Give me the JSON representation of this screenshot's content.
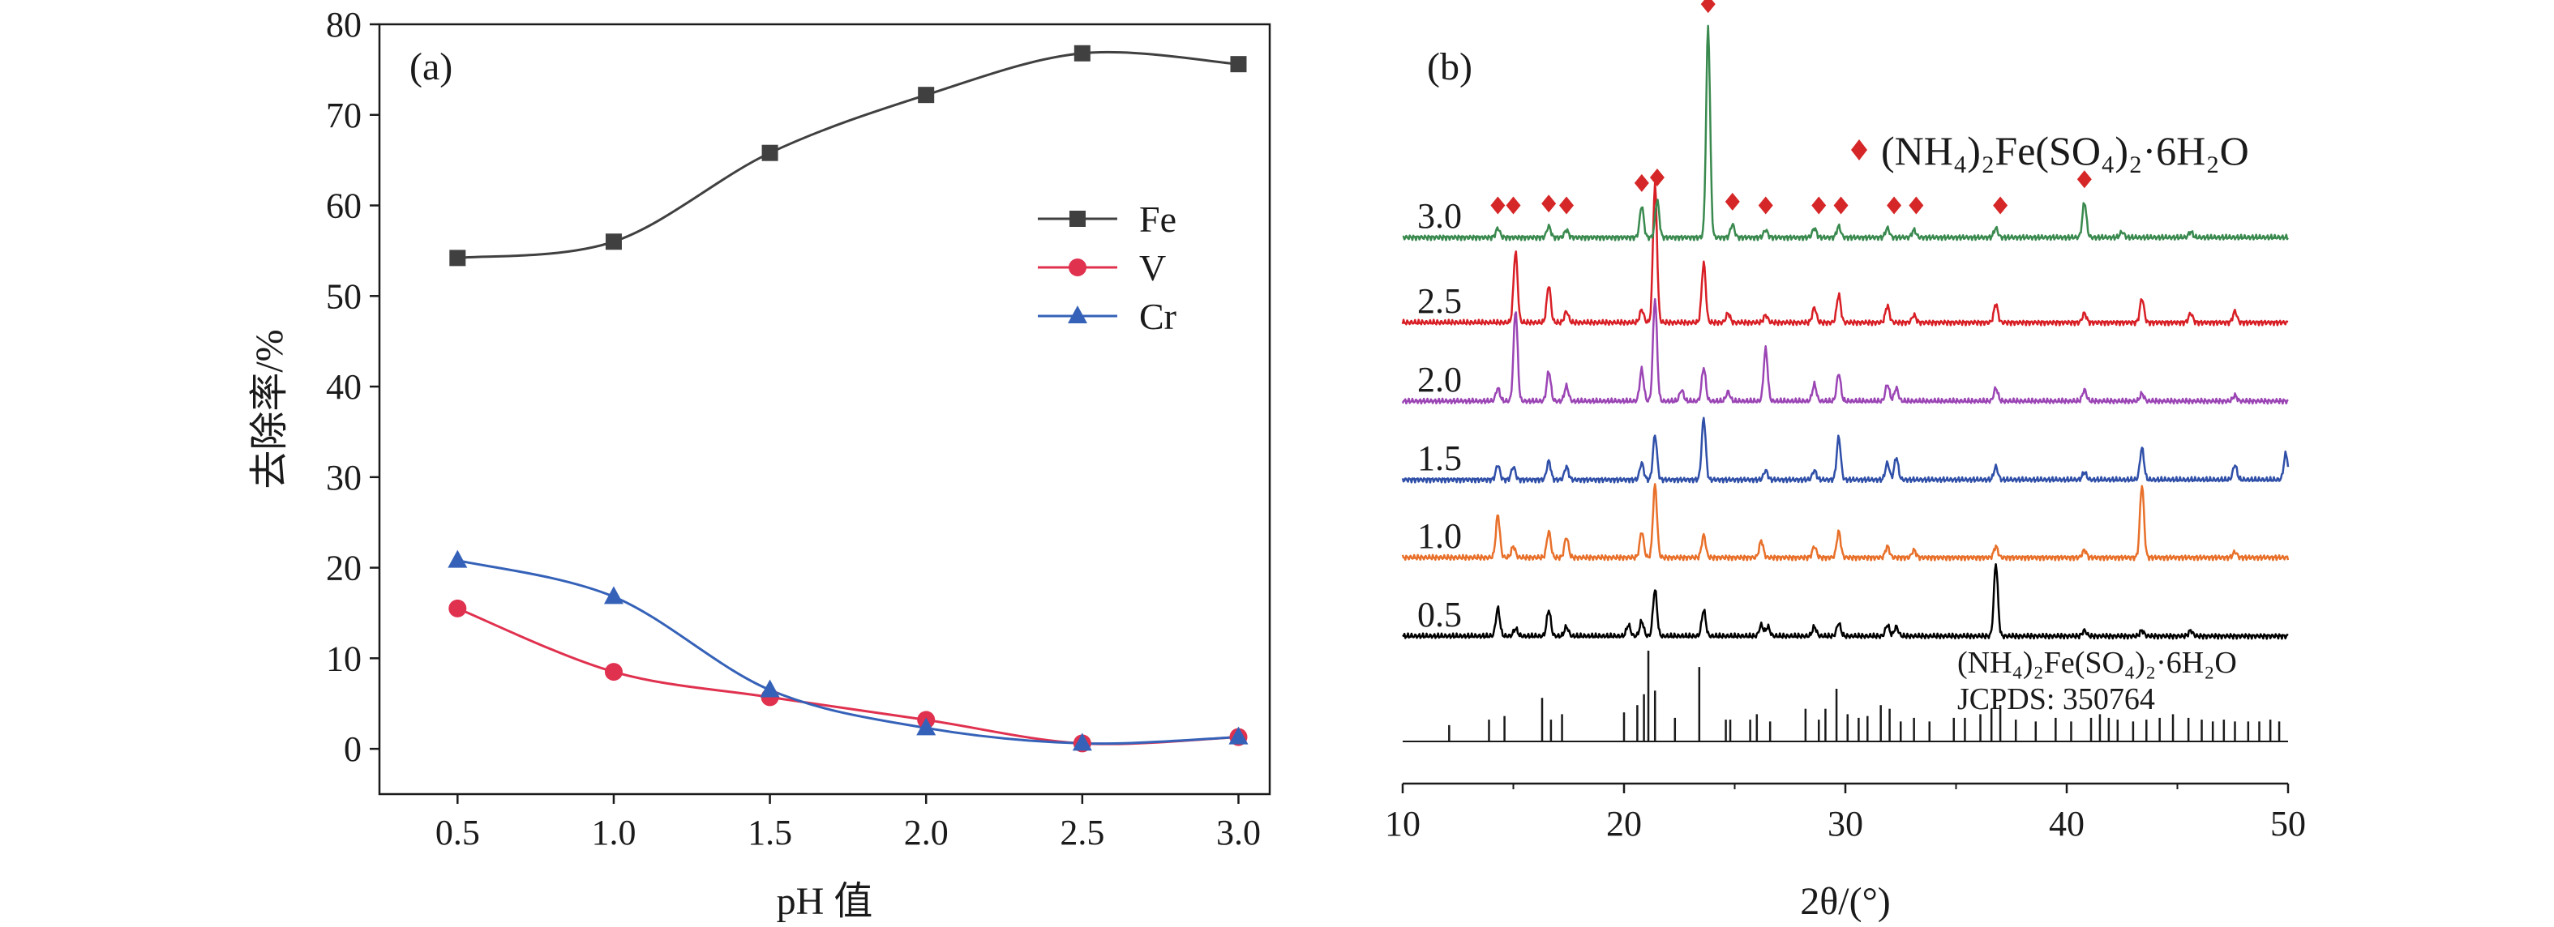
{
  "chart_data": [
    {
      "type": "line",
      "panel_label": "(a)",
      "xlabel": "pH 值",
      "ylabel": "去除率/%",
      "xlim": [
        0.25,
        3.1
      ],
      "ylim": [
        -5,
        80
      ],
      "x_ticks": [
        "0.5",
        "1.0",
        "1.5",
        "2.0",
        "2.5",
        "3.0"
      ],
      "y_ticks": [
        "0",
        "10",
        "20",
        "30",
        "40",
        "50",
        "60",
        "70",
        "80"
      ],
      "legend_position": "center-right",
      "x": [
        0.5,
        1.0,
        1.5,
        2.0,
        2.5,
        3.0
      ],
      "series": [
        {
          "name": "Fe",
          "marker": "square",
          "color": "#404040",
          "values": [
            54.2,
            56.0,
            65.8,
            72.2,
            76.8,
            75.6
          ]
        },
        {
          "name": "V",
          "marker": "circle",
          "color": "#e0314f",
          "values": [
            15.5,
            8.5,
            5.7,
            3.2,
            0.6,
            1.3
          ]
        },
        {
          "name": "Cr",
          "marker": "triangle",
          "color": "#3562b8",
          "values": [
            20.8,
            16.8,
            6.5,
            2.3,
            0.6,
            1.3
          ]
        }
      ]
    },
    {
      "type": "line",
      "panel_label": "(b)",
      "xlabel": "2θ/(°)",
      "xlim": [
        10,
        50
      ],
      "x_ticks": [
        "10",
        "20",
        "30",
        "40",
        "50"
      ],
      "legend_label": "(NH₄)₂Fe(SO₄)₂·6H₂O",
      "marker_color": "#d62728",
      "reference": {
        "name": "(NH₄)₂Fe(SO₄)₂·6H₂O",
        "card": "JCPDS: 350764",
        "lines": [
          {
            "pos": 12.1,
            "h": 0.18
          },
          {
            "pos": 13.9,
            "h": 0.24
          },
          {
            "pos": 14.6,
            "h": 0.28
          },
          {
            "pos": 16.3,
            "h": 0.48
          },
          {
            "pos": 16.7,
            "h": 0.24
          },
          {
            "pos": 17.2,
            "h": 0.3
          },
          {
            "pos": 20.0,
            "h": 0.32
          },
          {
            "pos": 20.6,
            "h": 0.4
          },
          {
            "pos": 20.9,
            "h": 0.52
          },
          {
            "pos": 21.1,
            "h": 1.0
          },
          {
            "pos": 21.4,
            "h": 0.56
          },
          {
            "pos": 22.3,
            "h": 0.26
          },
          {
            "pos": 23.4,
            "h": 0.82
          },
          {
            "pos": 24.6,
            "h": 0.24
          },
          {
            "pos": 24.8,
            "h": 0.24
          },
          {
            "pos": 25.7,
            "h": 0.24
          },
          {
            "pos": 26.0,
            "h": 0.3
          },
          {
            "pos": 26.6,
            "h": 0.22
          },
          {
            "pos": 28.2,
            "h": 0.36
          },
          {
            "pos": 28.8,
            "h": 0.24
          },
          {
            "pos": 29.1,
            "h": 0.36
          },
          {
            "pos": 29.6,
            "h": 0.58
          },
          {
            "pos": 30.1,
            "h": 0.3
          },
          {
            "pos": 30.6,
            "h": 0.26
          },
          {
            "pos": 31.0,
            "h": 0.28
          },
          {
            "pos": 31.6,
            "h": 0.4
          },
          {
            "pos": 32.0,
            "h": 0.36
          },
          {
            "pos": 32.5,
            "h": 0.22
          },
          {
            "pos": 33.1,
            "h": 0.26
          },
          {
            "pos": 33.8,
            "h": 0.22
          },
          {
            "pos": 34.9,
            "h": 0.26
          },
          {
            "pos": 35.4,
            "h": 0.26
          },
          {
            "pos": 36.1,
            "h": 0.3
          },
          {
            "pos": 36.6,
            "h": 0.36
          },
          {
            "pos": 37.0,
            "h": 0.4
          },
          {
            "pos": 37.7,
            "h": 0.24
          },
          {
            "pos": 38.6,
            "h": 0.22
          },
          {
            "pos": 39.5,
            "h": 0.26
          },
          {
            "pos": 40.2,
            "h": 0.22
          },
          {
            "pos": 41.1,
            "h": 0.26
          },
          {
            "pos": 41.5,
            "h": 0.3
          },
          {
            "pos": 41.9,
            "h": 0.26
          },
          {
            "pos": 42.3,
            "h": 0.24
          },
          {
            "pos": 43.0,
            "h": 0.22
          },
          {
            "pos": 43.6,
            "h": 0.24
          },
          {
            "pos": 44.2,
            "h": 0.26
          },
          {
            "pos": 44.8,
            "h": 0.3
          },
          {
            "pos": 45.5,
            "h": 0.26
          },
          {
            "pos": 46.1,
            "h": 0.24
          },
          {
            "pos": 46.6,
            "h": 0.22
          },
          {
            "pos": 47.1,
            "h": 0.24
          },
          {
            "pos": 47.6,
            "h": 0.22
          },
          {
            "pos": 48.2,
            "h": 0.22
          },
          {
            "pos": 48.7,
            "h": 0.22
          },
          {
            "pos": 49.2,
            "h": 0.24
          },
          {
            "pos": 49.6,
            "h": 0.22
          }
        ]
      },
      "series": [
        {
          "name": "0.5",
          "color": "#000000",
          "peaks": [
            {
              "pos": 14.3,
              "h": 0.3
            },
            {
              "pos": 15.1,
              "h": 0.08
            },
            {
              "pos": 16.6,
              "h": 0.28
            },
            {
              "pos": 17.4,
              "h": 0.1
            },
            {
              "pos": 20.2,
              "h": 0.12
            },
            {
              "pos": 20.8,
              "h": 0.16
            },
            {
              "pos": 21.4,
              "h": 0.5
            },
            {
              "pos": 23.6,
              "h": 0.28
            },
            {
              "pos": 26.2,
              "h": 0.12
            },
            {
              "pos": 26.5,
              "h": 0.1
            },
            {
              "pos": 28.6,
              "h": 0.1
            },
            {
              "pos": 29.7,
              "h": 0.14
            },
            {
              "pos": 31.9,
              "h": 0.12
            },
            {
              "pos": 32.3,
              "h": 0.1
            },
            {
              "pos": 36.8,
              "h": 0.78
            },
            {
              "pos": 40.8,
              "h": 0.06
            },
            {
              "pos": 43.4,
              "h": 0.06
            },
            {
              "pos": 45.6,
              "h": 0.06
            }
          ]
        },
        {
          "name": "1.0",
          "color": "#e8702a",
          "peaks": [
            {
              "pos": 14.3,
              "h": 0.46
            },
            {
              "pos": 15.0,
              "h": 0.12
            },
            {
              "pos": 16.6,
              "h": 0.28
            },
            {
              "pos": 17.4,
              "h": 0.22
            },
            {
              "pos": 20.8,
              "h": 0.28
            },
            {
              "pos": 21.4,
              "h": 0.78
            },
            {
              "pos": 23.6,
              "h": 0.24
            },
            {
              "pos": 26.2,
              "h": 0.18
            },
            {
              "pos": 28.6,
              "h": 0.12
            },
            {
              "pos": 29.7,
              "h": 0.28
            },
            {
              "pos": 31.9,
              "h": 0.12
            },
            {
              "pos": 33.1,
              "h": 0.08
            },
            {
              "pos": 36.8,
              "h": 0.12
            },
            {
              "pos": 40.8,
              "h": 0.08
            },
            {
              "pos": 43.4,
              "h": 0.78
            },
            {
              "pos": 47.6,
              "h": 0.06
            }
          ]
        },
        {
          "name": "1.5",
          "color": "#2f4fa8",
          "peaks": [
            {
              "pos": 14.3,
              "h": 0.16
            },
            {
              "pos": 15.0,
              "h": 0.14
            },
            {
              "pos": 16.6,
              "h": 0.2
            },
            {
              "pos": 17.4,
              "h": 0.14
            },
            {
              "pos": 20.8,
              "h": 0.18
            },
            {
              "pos": 21.4,
              "h": 0.48
            },
            {
              "pos": 23.6,
              "h": 0.66
            },
            {
              "pos": 26.4,
              "h": 0.1
            },
            {
              "pos": 28.6,
              "h": 0.1
            },
            {
              "pos": 29.7,
              "h": 0.46
            },
            {
              "pos": 31.9,
              "h": 0.18
            },
            {
              "pos": 32.3,
              "h": 0.24
            },
            {
              "pos": 36.8,
              "h": 0.14
            },
            {
              "pos": 40.8,
              "h": 0.08
            },
            {
              "pos": 43.4,
              "h": 0.34
            },
            {
              "pos": 47.6,
              "h": 0.16
            },
            {
              "pos": 49.9,
              "h": 0.28
            }
          ]
        },
        {
          "name": "2.0",
          "color": "#9b45b5",
          "peaks": [
            {
              "pos": 14.3,
              "h": 0.14
            },
            {
              "pos": 15.1,
              "h": 0.98
            },
            {
              "pos": 16.6,
              "h": 0.32
            },
            {
              "pos": 17.4,
              "h": 0.16
            },
            {
              "pos": 20.8,
              "h": 0.34
            },
            {
              "pos": 21.4,
              "h": 1.1
            },
            {
              "pos": 22.6,
              "h": 0.12
            },
            {
              "pos": 23.6,
              "h": 0.36
            },
            {
              "pos": 24.7,
              "h": 0.1
            },
            {
              "pos": 26.4,
              "h": 0.56
            },
            {
              "pos": 28.6,
              "h": 0.18
            },
            {
              "pos": 29.7,
              "h": 0.3
            },
            {
              "pos": 31.9,
              "h": 0.18
            },
            {
              "pos": 32.3,
              "h": 0.14
            },
            {
              "pos": 36.8,
              "h": 0.14
            },
            {
              "pos": 40.8,
              "h": 0.12
            },
            {
              "pos": 43.4,
              "h": 0.08
            },
            {
              "pos": 47.6,
              "h": 0.06
            }
          ]
        },
        {
          "name": "2.5",
          "color": "#d81f26",
          "peaks": [
            {
              "pos": 15.1,
              "h": 0.76
            },
            {
              "pos": 16.6,
              "h": 0.4
            },
            {
              "pos": 17.4,
              "h": 0.12
            },
            {
              "pos": 20.8,
              "h": 0.14
            },
            {
              "pos": 21.4,
              "h": 1.48
            },
            {
              "pos": 23.6,
              "h": 0.64
            },
            {
              "pos": 24.7,
              "h": 0.1
            },
            {
              "pos": 26.4,
              "h": 0.08
            },
            {
              "pos": 28.6,
              "h": 0.16
            },
            {
              "pos": 29.7,
              "h": 0.3
            },
            {
              "pos": 31.9,
              "h": 0.18
            },
            {
              "pos": 33.1,
              "h": 0.08
            },
            {
              "pos": 36.8,
              "h": 0.2
            },
            {
              "pos": 40.8,
              "h": 0.1
            },
            {
              "pos": 43.4,
              "h": 0.26
            },
            {
              "pos": 45.6,
              "h": 0.1
            },
            {
              "pos": 47.6,
              "h": 0.12
            }
          ]
        },
        {
          "name": "3.0",
          "color": "#3a8a4f",
          "peaks": [
            {
              "pos": 14.3,
              "h": 0.1
            },
            {
              "pos": 16.6,
              "h": 0.12
            },
            {
              "pos": 17.4,
              "h": 0.08
            },
            {
              "pos": 20.8,
              "h": 0.34
            },
            {
              "pos": 21.5,
              "h": 0.4
            },
            {
              "pos": 23.8,
              "h": 2.26
            },
            {
              "pos": 24.9,
              "h": 0.14
            },
            {
              "pos": 26.4,
              "h": 0.08
            },
            {
              "pos": 28.6,
              "h": 0.1
            },
            {
              "pos": 29.7,
              "h": 0.12
            },
            {
              "pos": 31.9,
              "h": 0.1
            },
            {
              "pos": 33.1,
              "h": 0.08
            },
            {
              "pos": 36.8,
              "h": 0.1
            },
            {
              "pos": 40.8,
              "h": 0.38
            },
            {
              "pos": 42.5,
              "h": 0.06
            },
            {
              "pos": 45.6,
              "h": 0.06
            }
          ]
        }
      ],
      "markers": [
        {
          "pattern": "3.0",
          "pos": 14.3
        },
        {
          "pattern": "3.0",
          "pos": 15.0
        },
        {
          "pattern": "3.0",
          "pos": 16.6
        },
        {
          "pattern": "3.0",
          "pos": 17.4
        },
        {
          "pattern": "3.0",
          "pos": 20.8
        },
        {
          "pattern": "3.0",
          "pos": 21.5
        },
        {
          "pattern": "3.0",
          "pos": 23.8
        },
        {
          "pattern": "3.0",
          "pos": 24.9
        },
        {
          "pattern": "3.0",
          "pos": 26.4
        },
        {
          "pattern": "3.0",
          "pos": 28.8
        },
        {
          "pattern": "3.0",
          "pos": 29.8
        },
        {
          "pattern": "3.0",
          "pos": 32.2
        },
        {
          "pattern": "3.0",
          "pos": 33.2
        },
        {
          "pattern": "3.0",
          "pos": 37.0
        },
        {
          "pattern": "3.0",
          "pos": 40.8
        }
      ]
    }
  ]
}
